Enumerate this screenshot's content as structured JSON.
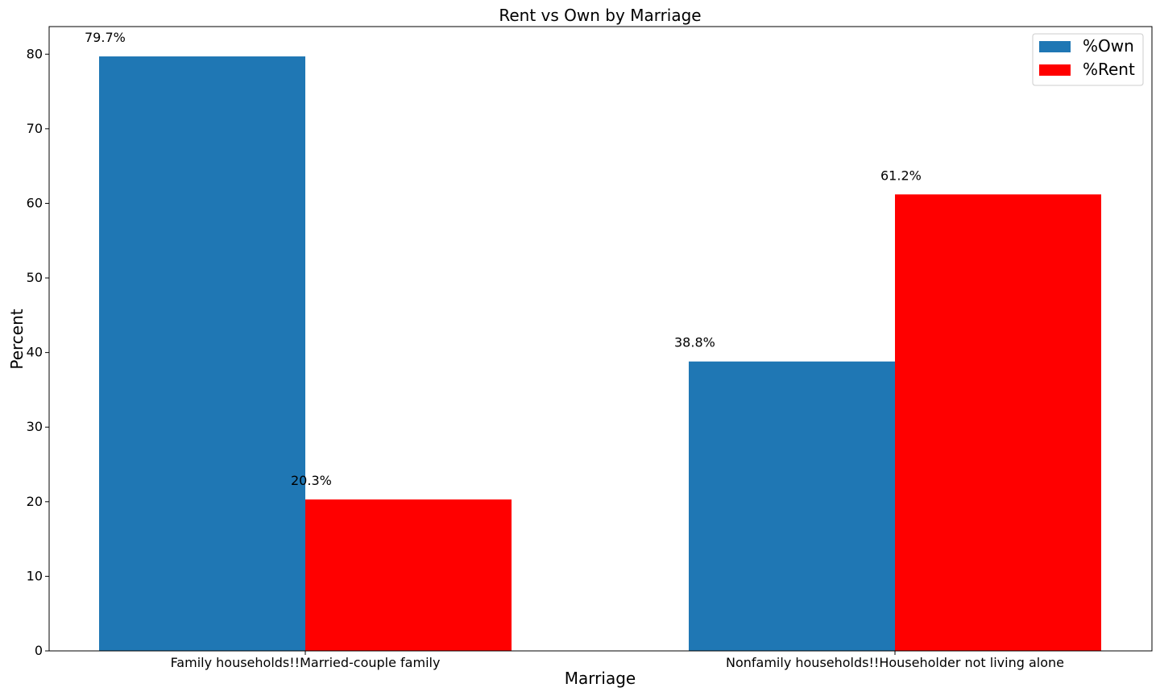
{
  "chart_data": {
    "type": "bar",
    "title": "Rent vs Own by Marriage",
    "xlabel": "Marriage",
    "ylabel": "Percent",
    "categories": [
      "Family households!!Married-couple family",
      "Nonfamily households!!Householder not living alone"
    ],
    "series": [
      {
        "name": "%Own",
        "values": [
          79.7,
          38.8
        ],
        "color": "#1f77b4",
        "labels": [
          "79.7%",
          "38.8%"
        ]
      },
      {
        "name": "%Rent",
        "values": [
          20.3,
          61.2
        ],
        "color": "#ff0000",
        "labels": [
          "20.3%",
          "61.2%"
        ]
      }
    ],
    "ylim": [
      0,
      83.7
    ],
    "yticks": [
      0,
      10,
      20,
      30,
      40,
      50,
      60,
      70,
      80
    ],
    "grid": false,
    "legend": "top-right"
  }
}
